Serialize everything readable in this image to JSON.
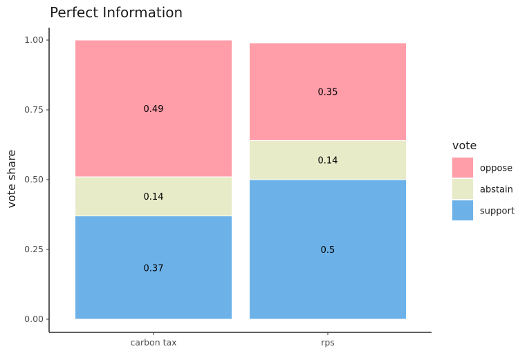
{
  "chart_data": {
    "type": "bar",
    "stacked": true,
    "title": "Perfect Information",
    "xlabel": "",
    "ylabel": "vote share",
    "ylim": [
      0,
      1
    ],
    "yticks": [
      "0.00",
      "0.25",
      "0.50",
      "0.75",
      "1.00"
    ],
    "ytick_values": [
      0,
      0.25,
      0.5,
      0.75,
      1
    ],
    "categories": [
      "carbon tax",
      "rps"
    ],
    "series": [
      {
        "name": "support",
        "values": [
          0.37,
          0.5
        ],
        "labels": [
          "0.37",
          "0.5"
        ],
        "color": "#6CB2E8"
      },
      {
        "name": "abstain",
        "values": [
          0.14,
          0.14
        ],
        "labels": [
          "0.14",
          "0.14"
        ],
        "color": "#E8EBC8"
      },
      {
        "name": "oppose",
        "values": [
          0.49,
          0.35
        ],
        "labels": [
          "0.49",
          "0.35"
        ],
        "color": "#FF9DA9"
      }
    ],
    "legend": {
      "title": "vote",
      "position": "right",
      "order": [
        "oppose",
        "abstain",
        "support"
      ]
    },
    "grid": false
  }
}
